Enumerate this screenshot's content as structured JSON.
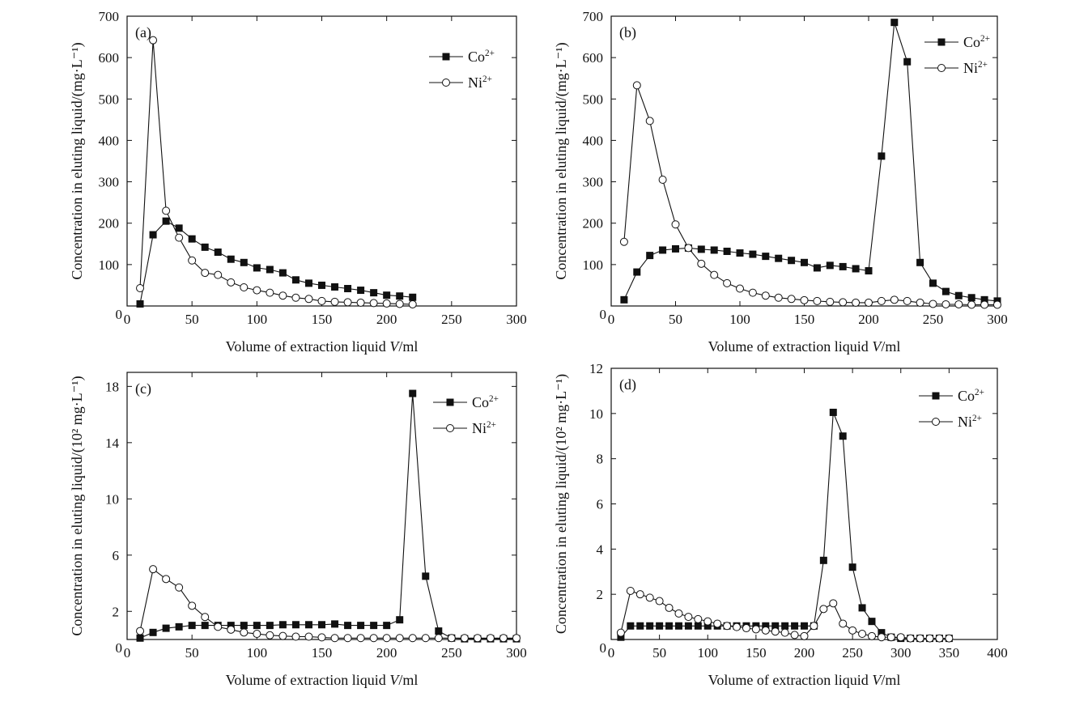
{
  "chart_data": [
    {
      "panel": "(a)",
      "type": "line",
      "xlabel_text": "Volume of extraction liquid ",
      "xlabel_var": "V",
      "xlabel_unit": "/ml",
      "ylabel": "Concentration in eluting liquid/(mg·L⁻¹)",
      "xlim": [
        0,
        300
      ],
      "ylim": [
        0,
        700
      ],
      "xticks": [
        0,
        50,
        100,
        150,
        200,
        250,
        300
      ],
      "yticks": [
        100,
        200,
        300,
        400,
        500,
        600,
        700
      ],
      "legend_placement": "top-right",
      "series": [
        {
          "name": "Co",
          "sup": "2+",
          "marker": "filled-square",
          "x": [
            10,
            20,
            30,
            40,
            50,
            60,
            70,
            80,
            90,
            100,
            110,
            120,
            130,
            140,
            150,
            160,
            170,
            180,
            190,
            200,
            210,
            220
          ],
          "y": [
            5,
            172,
            205,
            188,
            162,
            142,
            130,
            113,
            105,
            92,
            88,
            80,
            63,
            55,
            50,
            46,
            42,
            38,
            32,
            26,
            24,
            21
          ]
        },
        {
          "name": "Ni",
          "sup": "2+",
          "marker": "open-circle",
          "x": [
            10,
            20,
            30,
            40,
            50,
            60,
            70,
            80,
            90,
            100,
            110,
            120,
            130,
            140,
            150,
            160,
            170,
            180,
            190,
            200,
            210,
            220
          ],
          "y": [
            43,
            642,
            230,
            165,
            110,
            80,
            75,
            57,
            45,
            38,
            32,
            25,
            20,
            17,
            12,
            10,
            9,
            8,
            7,
            6,
            5,
            4
          ]
        }
      ]
    },
    {
      "panel": "(b)",
      "type": "line",
      "xlabel_text": "Volume of extraction liquid ",
      "xlabel_var": "V",
      "xlabel_unit": "/ml",
      "ylabel": "Concentration in eluting liquid/(mg·L⁻¹)",
      "xlim": [
        0,
        300
      ],
      "ylim": [
        0,
        700
      ],
      "xticks": [
        0,
        50,
        100,
        150,
        200,
        250,
        300
      ],
      "yticks": [
        100,
        200,
        300,
        400,
        500,
        600,
        700
      ],
      "legend_placement": "top-right",
      "series": [
        {
          "name": "Co",
          "sup": "2+",
          "marker": "filled-square",
          "x": [
            10,
            20,
            30,
            40,
            50,
            60,
            70,
            80,
            90,
            100,
            110,
            120,
            130,
            140,
            150,
            160,
            170,
            180,
            190,
            200,
            210,
            220,
            230,
            240,
            250,
            260,
            270,
            280,
            290,
            300
          ],
          "y": [
            15,
            82,
            122,
            135,
            138,
            140,
            137,
            135,
            132,
            128,
            125,
            120,
            115,
            110,
            105,
            92,
            98,
            95,
            90,
            85,
            362,
            685,
            590,
            105,
            55,
            35,
            25,
            20,
            15,
            12
          ]
        },
        {
          "name": "Ni",
          "sup": "2+",
          "marker": "open-circle",
          "x": [
            10,
            20,
            30,
            40,
            50,
            60,
            70,
            80,
            90,
            100,
            110,
            120,
            130,
            140,
            150,
            160,
            170,
            180,
            190,
            200,
            210,
            220,
            230,
            240,
            250,
            260,
            270,
            280,
            290,
            300
          ],
          "y": [
            155,
            533,
            447,
            305,
            197,
            140,
            102,
            75,
            55,
            42,
            32,
            25,
            20,
            17,
            14,
            12,
            10,
            9,
            8,
            8,
            12,
            15,
            12,
            8,
            5,
            4,
            4,
            3,
            3,
            3
          ]
        }
      ]
    },
    {
      "panel": "(c)",
      "type": "line",
      "xlabel_text": "Volume of extraction liquid ",
      "xlabel_var": "V",
      "xlabel_unit": "/ml",
      "ylabel": "Concentration in eluting liquid/(10² mg·L⁻¹)",
      "xlim": [
        0,
        300
      ],
      "ylim": [
        0,
        19
      ],
      "xticks": [
        0,
        50,
        100,
        150,
        200,
        250,
        300
      ],
      "yticks": [
        2,
        6,
        10,
        14,
        18
      ],
      "legend_placement": "top-right",
      "series": [
        {
          "name": "Co",
          "sup": "2+",
          "marker": "filled-square",
          "x": [
            10,
            20,
            30,
            40,
            50,
            60,
            70,
            80,
            90,
            100,
            110,
            120,
            130,
            140,
            150,
            160,
            170,
            180,
            190,
            200,
            210,
            220,
            230,
            240,
            250,
            260,
            270,
            280,
            290,
            300
          ],
          "y": [
            0.1,
            0.5,
            0.8,
            0.9,
            1.0,
            1.0,
            1.0,
            1.0,
            1.0,
            1.0,
            1.0,
            1.05,
            1.05,
            1.05,
            1.05,
            1.1,
            1.0,
            1.0,
            1.0,
            1.0,
            1.4,
            17.5,
            4.5,
            0.6,
            0.1,
            0.05,
            0.05,
            0.05,
            0.05,
            0.05
          ]
        },
        {
          "name": "Ni",
          "sup": "2+",
          "marker": "open-circle",
          "x": [
            10,
            20,
            30,
            40,
            50,
            60,
            70,
            80,
            90,
            100,
            110,
            120,
            130,
            140,
            150,
            160,
            170,
            180,
            190,
            200,
            210,
            220,
            230,
            240,
            250,
            260,
            270,
            280,
            290,
            300
          ],
          "y": [
            0.6,
            5.0,
            4.3,
            3.7,
            2.4,
            1.6,
            0.9,
            0.7,
            0.5,
            0.4,
            0.3,
            0.25,
            0.2,
            0.2,
            0.15,
            0.1,
            0.1,
            0.1,
            0.1,
            0.1,
            0.1,
            0.1,
            0.1,
            0.1,
            0.1,
            0.1,
            0.1,
            0.1,
            0.1,
            0.1
          ]
        }
      ]
    },
    {
      "panel": "(d)",
      "type": "line",
      "xlabel_text": "Volume of extraction liquid ",
      "xlabel_var": "V",
      "xlabel_unit": "/ml",
      "ylabel": "Concentration in eluting liquid/(10² mg·L⁻¹)",
      "xlim": [
        0,
        400
      ],
      "ylim": [
        0,
        12
      ],
      "xticks": [
        0,
        50,
        100,
        150,
        200,
        250,
        300,
        350,
        400
      ],
      "yticks": [
        2,
        4,
        6,
        8,
        10,
        12
      ],
      "legend_placement": "top-right",
      "series": [
        {
          "name": "Co",
          "sup": "2+",
          "marker": "filled-square",
          "x": [
            10,
            20,
            30,
            40,
            50,
            60,
            70,
            80,
            90,
            100,
            110,
            120,
            130,
            140,
            150,
            160,
            170,
            180,
            190,
            200,
            210,
            220,
            230,
            240,
            250,
            260,
            270,
            280,
            290,
            300,
            310,
            320,
            330,
            340,
            350
          ],
          "y": [
            0.1,
            0.6,
            0.6,
            0.6,
            0.6,
            0.6,
            0.6,
            0.6,
            0.6,
            0.6,
            0.6,
            0.6,
            0.6,
            0.6,
            0.6,
            0.6,
            0.6,
            0.6,
            0.6,
            0.6,
            0.6,
            3.5,
            10.05,
            9.0,
            3.2,
            1.4,
            0.8,
            0.3,
            0.1,
            0.05,
            0.05,
            0.05,
            0.05,
            0.05,
            0.05
          ]
        },
        {
          "name": "Ni",
          "sup": "2+",
          "marker": "open-circle",
          "x": [
            10,
            20,
            30,
            40,
            50,
            60,
            70,
            80,
            90,
            100,
            110,
            120,
            130,
            140,
            150,
            160,
            170,
            180,
            190,
            200,
            210,
            220,
            230,
            240,
            250,
            260,
            270,
            280,
            290,
            300,
            310,
            320,
            330,
            340,
            350
          ],
          "y": [
            0.3,
            2.15,
            2.0,
            1.85,
            1.7,
            1.4,
            1.15,
            1.0,
            0.9,
            0.8,
            0.7,
            0.6,
            0.55,
            0.5,
            0.45,
            0.4,
            0.35,
            0.3,
            0.2,
            0.15,
            0.6,
            1.35,
            1.6,
            0.7,
            0.4,
            0.25,
            0.15,
            0.1,
            0.1,
            0.1,
            0.05,
            0.05,
            0.05,
            0.05,
            0.05
          ]
        }
      ]
    }
  ]
}
